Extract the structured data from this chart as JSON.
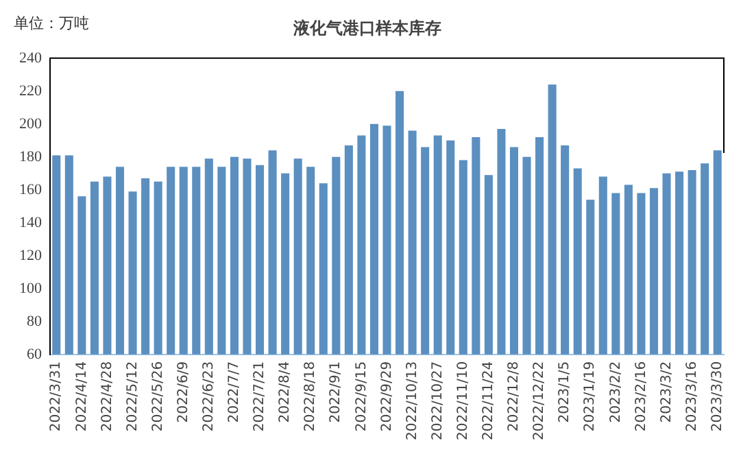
{
  "chart_data": {
    "type": "bar",
    "title": "液化气港口样本库存",
    "annotations": [
      "单位：万吨"
    ],
    "categories": [
      "2022/3/31",
      null,
      "2022/4/14",
      null,
      "2022/4/28",
      null,
      "2022/5/12",
      null,
      "2022/5/26",
      null,
      "2022/6/9",
      null,
      "2022/6/23",
      null,
      "2022/7/7",
      null,
      "2022/7/21",
      null,
      "2022/8/4",
      null,
      "2022/8/18",
      null,
      "2022/9/1",
      null,
      "2022/9/15",
      null,
      "2022/9/29",
      null,
      "2022/10/13",
      null,
      "2022/10/27",
      null,
      "2022/11/10",
      null,
      "2022/11/24",
      null,
      "2022/12/8",
      null,
      "2022/12/22",
      null,
      "2023/1/5",
      null,
      "2023/1/19",
      null,
      "2023/2/2",
      null,
      "2023/2/16",
      null,
      "2023/3/2",
      null,
      "2023/3/16",
      null,
      "2023/3/30"
    ],
    "values": [
      181,
      181,
      156,
      165,
      168,
      174,
      159,
      167,
      165,
      174,
      174,
      174,
      179,
      174,
      180,
      179,
      175,
      184,
      170,
      179,
      174,
      164,
      180,
      187,
      193,
      200,
      199,
      220,
      196,
      186,
      193,
      190,
      178,
      192,
      169,
      197,
      186,
      180,
      192,
      224,
      187,
      173,
      154,
      168,
      158,
      163,
      158,
      161,
      170,
      171,
      172,
      176,
      184
    ],
    "color": "#5b8fc0",
    "ylim": [
      60,
      240
    ],
    "yticks": [
      60,
      80,
      100,
      120,
      140,
      160,
      180,
      200,
      220,
      240
    ],
    "grid": false,
    "legend": false
  }
}
